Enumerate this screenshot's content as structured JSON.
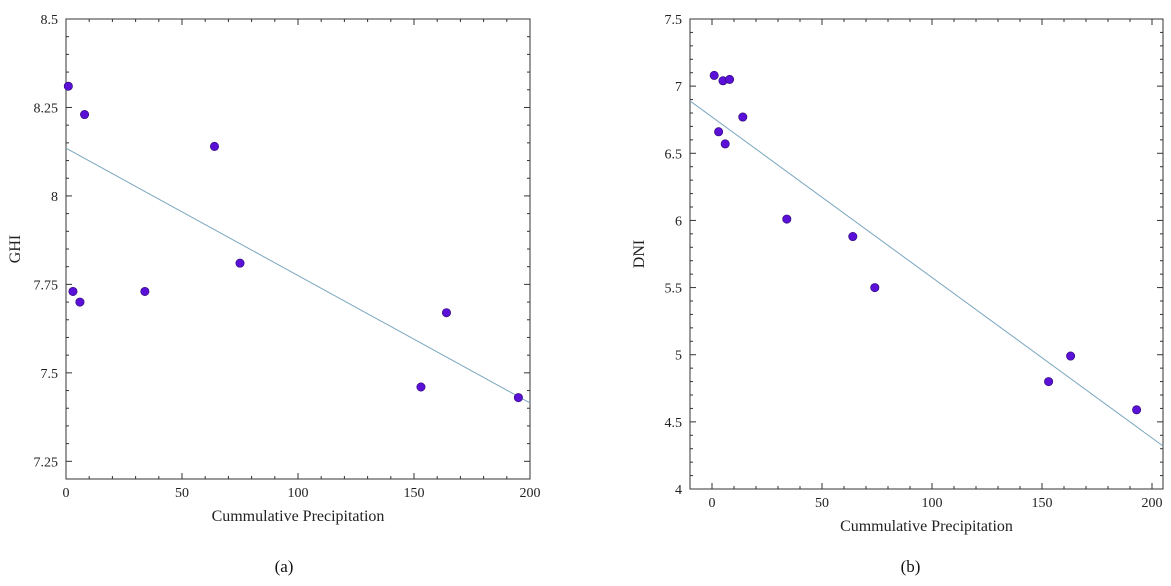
{
  "chart_data": [
    {
      "type": "scatter",
      "caption": "(a)",
      "xlabel": "Cummulative Precipitation",
      "ylabel": "GHI",
      "xlim": [
        0,
        200
      ],
      "ylim": [
        7.2,
        8.5
      ],
      "xticks": [
        0,
        50,
        100,
        150,
        200
      ],
      "yticks": [
        7.25,
        7.5,
        7.75,
        8,
        8.25,
        8.5
      ],
      "x_tick_labels": [
        "0",
        "50",
        "100",
        "150",
        "200"
      ],
      "y_tick_labels": [
        "7.25",
        "7.5",
        "7.75",
        "8",
        "8.25",
        "8.5"
      ],
      "points": [
        {
          "x": 1,
          "y": 8.31
        },
        {
          "x": 8,
          "y": 8.23
        },
        {
          "x": 3,
          "y": 7.73
        },
        {
          "x": 6,
          "y": 7.7
        },
        {
          "x": 34,
          "y": 7.73
        },
        {
          "x": 64,
          "y": 8.14
        },
        {
          "x": 75,
          "y": 7.81
        },
        {
          "x": 153,
          "y": 7.46
        },
        {
          "x": 164,
          "y": 7.67
        },
        {
          "x": 195,
          "y": 7.43
        }
      ],
      "fit_line": {
        "x": [
          0,
          200
        ],
        "y": [
          8.135,
          7.415
        ]
      },
      "marker_color": "#5a10d6",
      "line_color": "#7aa6bf",
      "grid": false
    },
    {
      "type": "scatter",
      "caption": "(b)",
      "xlabel": "Cummulative Precipitation",
      "ylabel": "DNI",
      "xlim": [
        -10,
        205
      ],
      "ylim": [
        4,
        7.5
      ],
      "xticks": [
        0,
        50,
        100,
        150,
        200
      ],
      "yticks": [
        4,
        4.5,
        5,
        5.5,
        6,
        6.5,
        7,
        7.5
      ],
      "x_tick_labels": [
        "0",
        "50",
        "100",
        "150",
        "200"
      ],
      "y_tick_labels": [
        "4",
        "4.5",
        "5",
        "5.5",
        "6",
        "6.5",
        "7",
        "7.5"
      ],
      "points": [
        {
          "x": 1,
          "y": 7.08
        },
        {
          "x": 5,
          "y": 7.04
        },
        {
          "x": 8,
          "y": 7.05
        },
        {
          "x": 3,
          "y": 6.66
        },
        {
          "x": 6,
          "y": 6.57
        },
        {
          "x": 14,
          "y": 6.77
        },
        {
          "x": 34,
          "y": 6.01
        },
        {
          "x": 64,
          "y": 5.88
        },
        {
          "x": 74,
          "y": 5.5
        },
        {
          "x": 153,
          "y": 4.8
        },
        {
          "x": 163,
          "y": 4.99
        },
        {
          "x": 193,
          "y": 4.59
        }
      ],
      "fit_line": {
        "x": [
          -10,
          205
        ],
        "y": [
          6.89,
          4.32
        ]
      },
      "marker_color": "#5a10d6",
      "line_color": "#7aa6bf",
      "grid": false
    }
  ]
}
